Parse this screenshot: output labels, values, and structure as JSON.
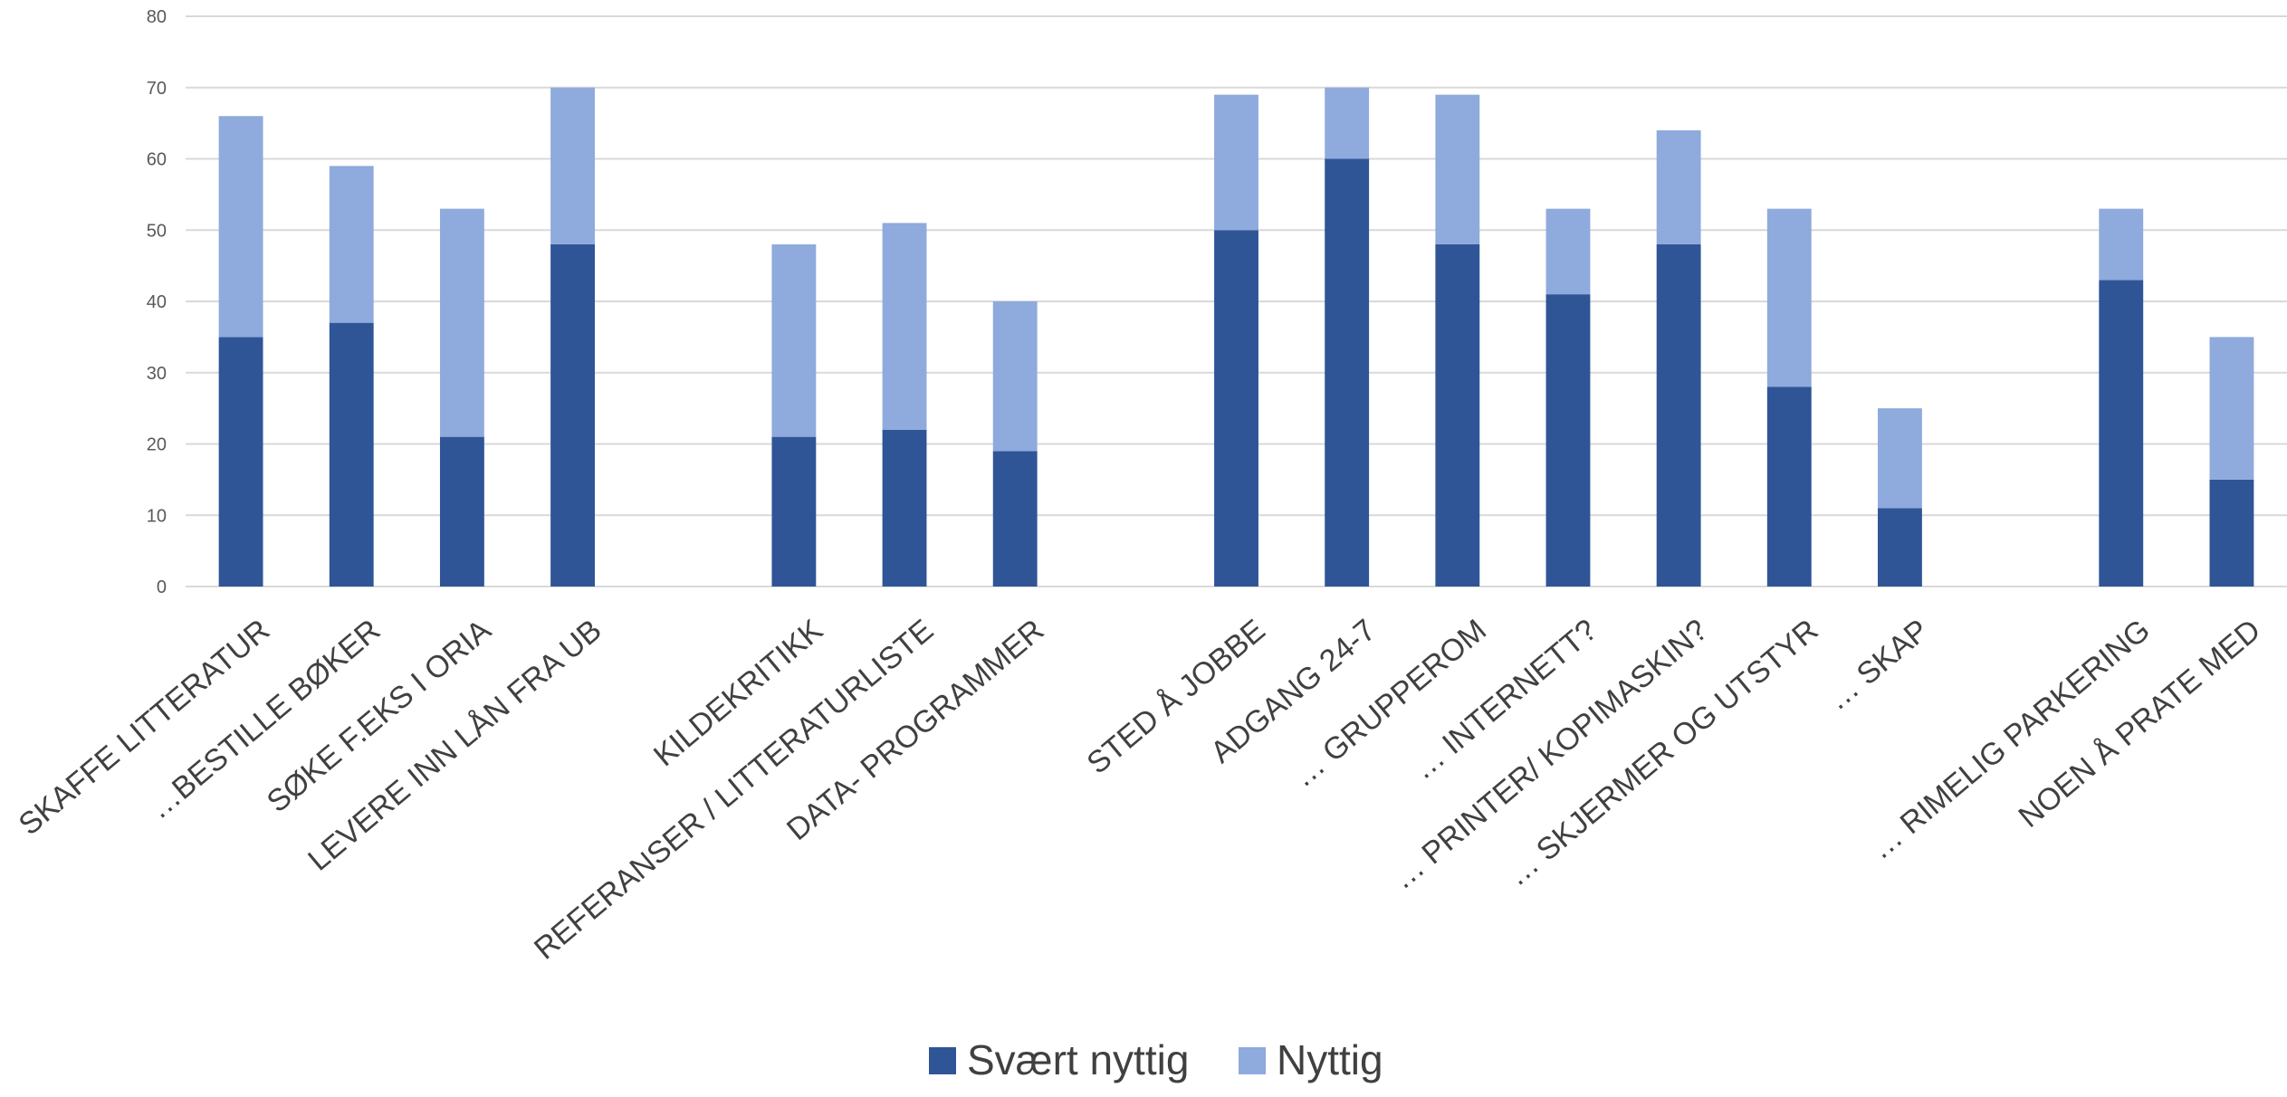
{
  "chart_data": {
    "type": "bar",
    "stacked": true,
    "title": "",
    "xlabel": "",
    "ylabel": "",
    "ylim": [
      0,
      80
    ],
    "yticks": [
      0,
      10,
      20,
      30,
      40,
      50,
      60,
      70,
      80
    ],
    "grid": true,
    "legend_position": "bottom",
    "categories": [
      "SKAFFE LITTERATUR",
      "…BESTILLE BØKER",
      "SØKE F.EKS I ORIA",
      "LEVERE INN LÅN FRA UB",
      "",
      "KILDEKRITIKK",
      "REFERANSER / LITTERATURLISTE",
      "DATA- PROGRAMMER",
      "",
      "STED Å JOBBE",
      "ADGANG 24-7",
      "… GRUPPEROM",
      "… INTERNETT?",
      "… PRINTER/ KOPIMASKIN?",
      "… SKJERMER OG UTSTYR",
      "… SKAP",
      "",
      "… RIMELIG PARKERING",
      "NOEN Å PRATE MED"
    ],
    "series": [
      {
        "name": "Svært nyttig",
        "color": "#2F5597",
        "values": [
          35,
          37,
          21,
          48,
          null,
          21,
          22,
          19,
          null,
          50,
          60,
          48,
          41,
          48,
          28,
          11,
          null,
          43,
          15
        ]
      },
      {
        "name": "Nyttig",
        "color": "#8FAADC",
        "values": [
          31,
          22,
          32,
          22,
          null,
          27,
          29,
          21,
          null,
          19,
          10,
          21,
          12,
          16,
          25,
          14,
          null,
          10,
          20
        ]
      }
    ]
  }
}
